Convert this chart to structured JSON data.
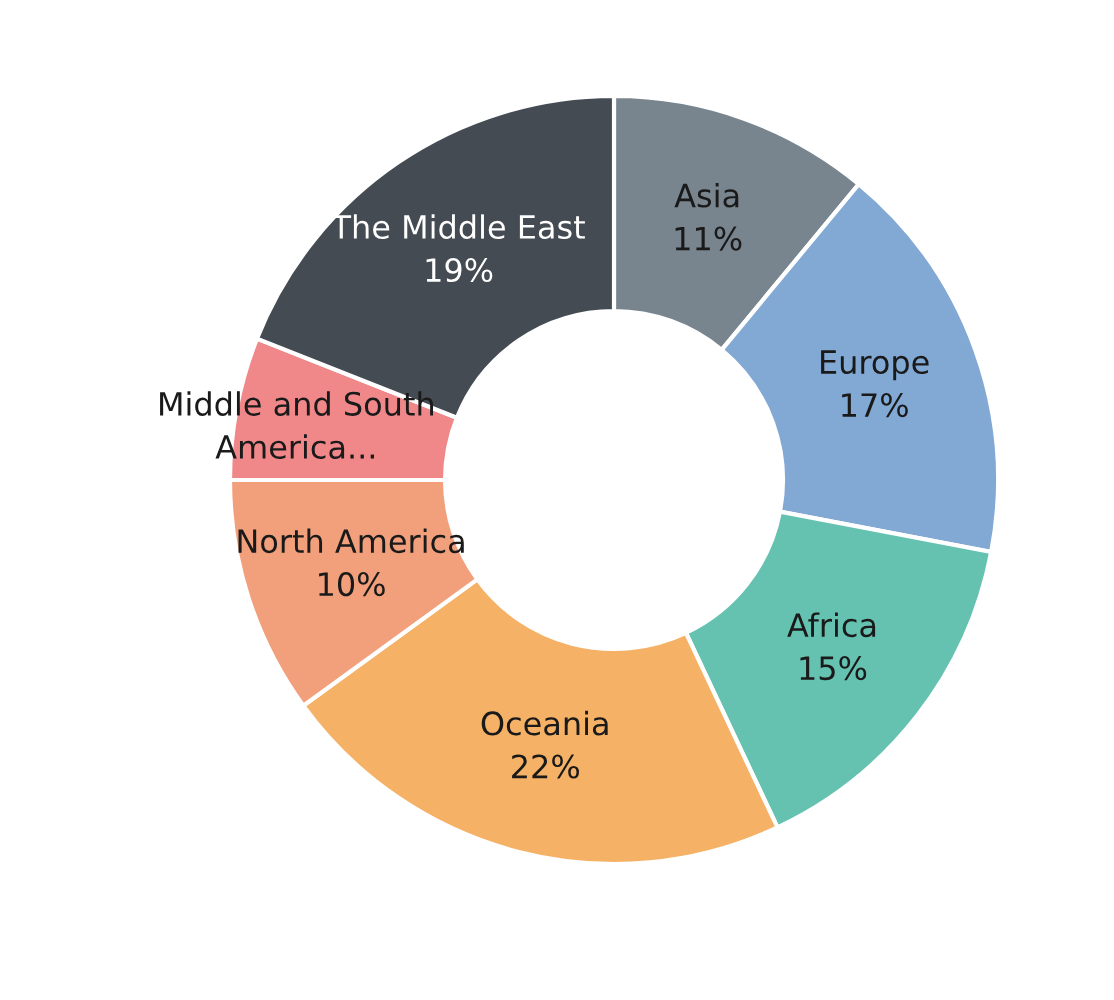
{
  "chart_data": {
    "type": "donut",
    "categories": [
      "Asia",
      "Europe",
      "Africa",
      "Oceania",
      "North America",
      "Middle and South\nAmerica...",
      "The Middle East"
    ],
    "values": [
      11,
      17,
      15,
      22,
      10,
      6,
      19
    ],
    "colors": [
      "#78848e",
      "#82a8d4",
      "#66c2b0",
      "#f5b266",
      "#f2a07c",
      "#f0888a",
      "#454b53"
    ],
    "value_labels": [
      "11%",
      "17%",
      "15%",
      "22%",
      "10%",
      null,
      "19%"
    ],
    "legend": false
  }
}
